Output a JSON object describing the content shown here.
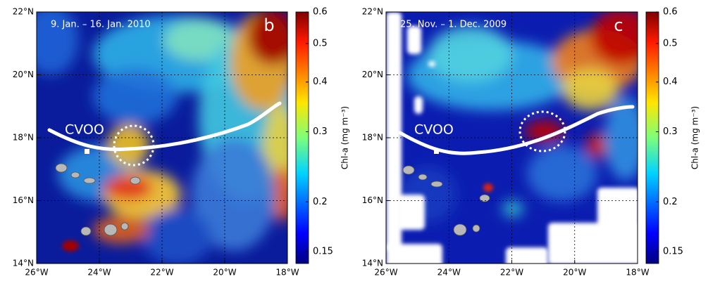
{
  "panels": [
    {
      "date": "9. Jan. – 16. Jan. 2010",
      "letter": "b",
      "station": "CVOO"
    },
    {
      "date": "25. Nov. – 1. Dec. 2009",
      "letter": "c",
      "station": "CVOO"
    }
  ],
  "map": {
    "xlim": [
      -26,
      -18
    ],
    "ylim": [
      14,
      22
    ],
    "xticks": [
      {
        "value": -26,
        "label": "26°W"
      },
      {
        "value": -24,
        "label": "24°W"
      },
      {
        "value": -22,
        "label": "22°W"
      },
      {
        "value": -20,
        "label": "20°W"
      },
      {
        "value": -18,
        "label": "18°W"
      }
    ],
    "yticks": [
      {
        "value": 14,
        "label": "14°N"
      },
      {
        "value": 16,
        "label": "16°N"
      },
      {
        "value": 18,
        "label": "18°N"
      },
      {
        "value": 20,
        "label": "20°N"
      },
      {
        "value": 22,
        "label": "22°N"
      }
    ],
    "grid": true
  },
  "colorbar": {
    "label": "Chl-a (mg m⁻³)",
    "clim": [
      0.14,
      0.6
    ],
    "log": true,
    "ticks": [
      0.15,
      0.2,
      0.3,
      0.4,
      0.5,
      0.6
    ]
  }
}
